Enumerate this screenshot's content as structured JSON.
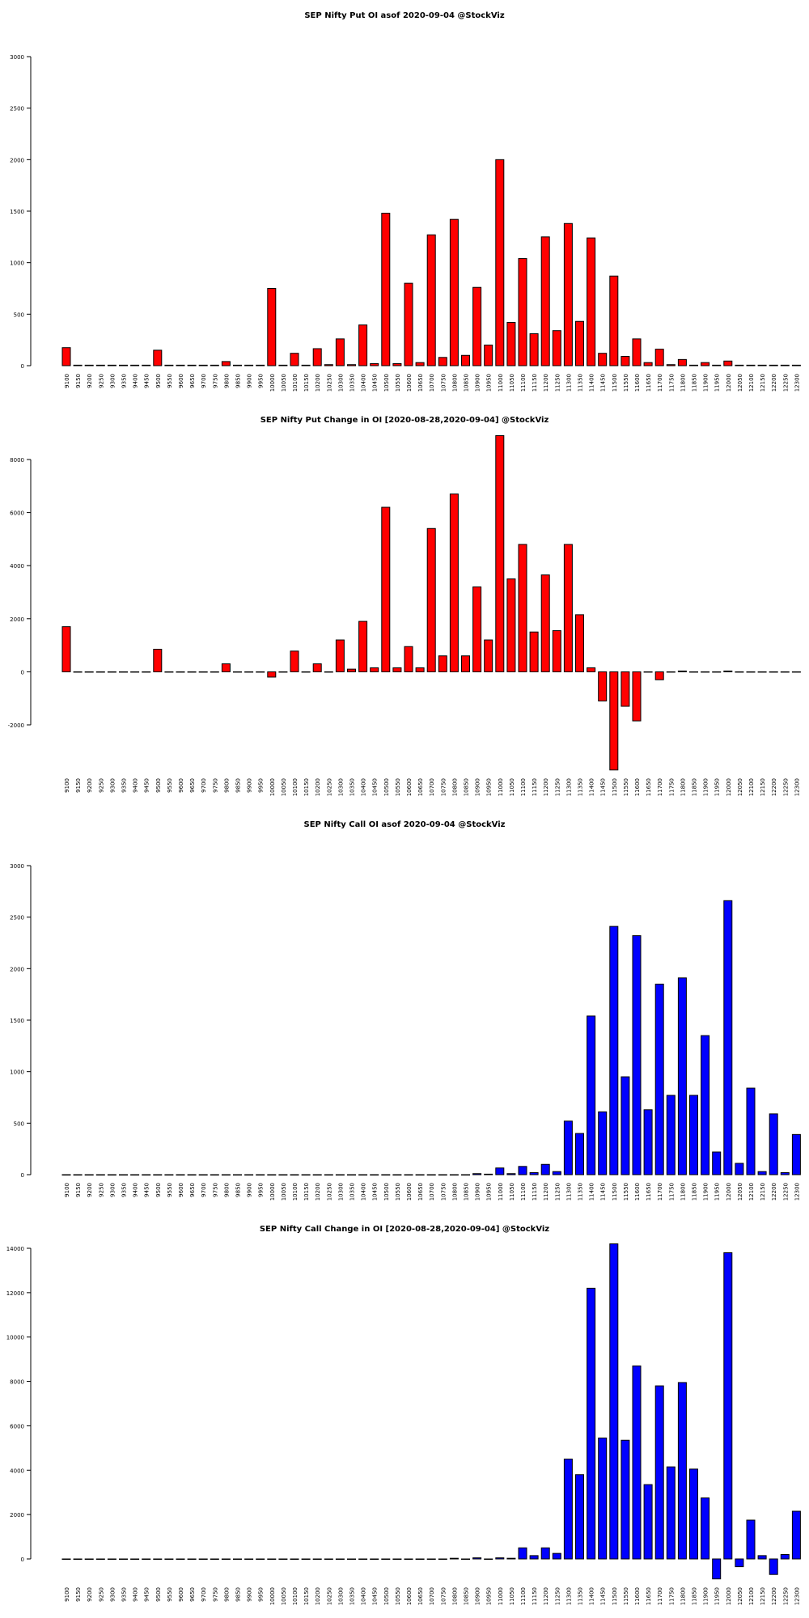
{
  "chart_data": [
    {
      "type": "bar",
      "title": "SEP Nifty Put OI asof 2020-09-04 @StockViz",
      "color": "#ff0000",
      "categories": [
        "9100",
        "9150",
        "9200",
        "9250",
        "9300",
        "9350",
        "9400",
        "9450",
        "9500",
        "9550",
        "9600",
        "9650",
        "9700",
        "9750",
        "9800",
        "9850",
        "9900",
        "9950",
        "10000",
        "10050",
        "10100",
        "10150",
        "10200",
        "10250",
        "10300",
        "10350",
        "10400",
        "10450",
        "10500",
        "10550",
        "10600",
        "10650",
        "10700",
        "10750",
        "10800",
        "10850",
        "10900",
        "10950",
        "11000",
        "11050",
        "11100",
        "11150",
        "11200",
        "11250",
        "11300",
        "11350",
        "11400",
        "11450",
        "11500",
        "11550",
        "11600",
        "11650",
        "11700",
        "11750",
        "11800",
        "11850",
        "11900",
        "11950",
        "12000",
        "12050",
        "12100",
        "12150",
        "12200",
        "12250",
        "12300"
      ],
      "values": [
        175,
        5,
        5,
        5,
        5,
        5,
        5,
        5,
        150,
        5,
        5,
        5,
        5,
        5,
        40,
        5,
        5,
        5,
        750,
        5,
        120,
        5,
        165,
        10,
        260,
        10,
        395,
        20,
        1480,
        20,
        800,
        30,
        1270,
        80,
        1420,
        100,
        760,
        200,
        2000,
        420,
        1040,
        310,
        1250,
        340,
        1380,
        430,
        1240,
        120,
        870,
        90,
        260,
        30,
        160,
        10,
        60,
        5,
        30,
        5,
        45,
        5,
        5,
        5,
        5,
        5,
        5
      ],
      "ylim": [
        0,
        3000
      ],
      "yticks": [
        0,
        500,
        1000,
        1500,
        2000,
        2500,
        3000
      ]
    },
    {
      "type": "bar",
      "title": "SEP Nifty Put Change in OI [2020-08-28,2020-09-04] @StockViz",
      "color": "#ff0000",
      "categories": [
        "9100",
        "9150",
        "9200",
        "9250",
        "9300",
        "9350",
        "9400",
        "9450",
        "9500",
        "9550",
        "9600",
        "9650",
        "9700",
        "9750",
        "9800",
        "9850",
        "9900",
        "9950",
        "10000",
        "10050",
        "10100",
        "10150",
        "10200",
        "10250",
        "10300",
        "10350",
        "10400",
        "10450",
        "10500",
        "10550",
        "10600",
        "10650",
        "10700",
        "10750",
        "10800",
        "10850",
        "10900",
        "10950",
        "11000",
        "11050",
        "11100",
        "11150",
        "11200",
        "11250",
        "11300",
        "11350",
        "11400",
        "11450",
        "11500",
        "11550",
        "11600",
        "11650",
        "11700",
        "11750",
        "11800",
        "11850",
        "11900",
        "11950",
        "12000",
        "12050",
        "12100",
        "12150",
        "12200",
        "12250",
        "12300"
      ],
      "values": [
        1700,
        0,
        0,
        0,
        0,
        0,
        0,
        0,
        850,
        0,
        0,
        0,
        0,
        0,
        300,
        0,
        0,
        0,
        -200,
        0,
        780,
        0,
        300,
        0,
        1200,
        100,
        1900,
        150,
        6200,
        150,
        950,
        150,
        5400,
        600,
        6700,
        600,
        3200,
        1200,
        8900,
        3500,
        4800,
        1500,
        3650,
        1550,
        4800,
        2150,
        150,
        -1100,
        -3700,
        -1300,
        -1850,
        0,
        -300,
        0,
        30,
        0,
        0,
        0,
        30,
        0,
        0,
        0,
        0,
        0,
        0
      ],
      "ylim": [
        -3700,
        8900
      ],
      "yticks": [
        -2000,
        0,
        2000,
        4000,
        6000,
        8000
      ]
    },
    {
      "type": "bar",
      "title": "SEP Nifty Call OI asof 2020-09-04 @StockViz",
      "color": "#0000ff",
      "categories": [
        "9100",
        "9150",
        "9200",
        "9250",
        "9300",
        "9350",
        "9400",
        "9450",
        "9500",
        "9550",
        "9600",
        "9650",
        "9700",
        "9750",
        "9800",
        "9850",
        "9900",
        "9950",
        "10000",
        "10050",
        "10100",
        "10150",
        "10200",
        "10250",
        "10300",
        "10350",
        "10400",
        "10450",
        "10500",
        "10550",
        "10600",
        "10650",
        "10700",
        "10750",
        "10800",
        "10850",
        "10900",
        "10950",
        "11000",
        "11050",
        "11100",
        "11150",
        "11200",
        "11250",
        "11300",
        "11350",
        "11400",
        "11450",
        "11500",
        "11550",
        "11600",
        "11650",
        "11700",
        "11750",
        "11800",
        "11850",
        "11900",
        "11950",
        "12000",
        "12050",
        "12100",
        "12150",
        "12200",
        "12250",
        "12300"
      ],
      "values": [
        0,
        0,
        0,
        0,
        0,
        0,
        0,
        0,
        0,
        0,
        0,
        0,
        0,
        0,
        0,
        0,
        0,
        0,
        0,
        0,
        0,
        0,
        0,
        0,
        0,
        0,
        0,
        0,
        0,
        0,
        0,
        0,
        0,
        0,
        0,
        0,
        10,
        5,
        65,
        10,
        80,
        20,
        100,
        30,
        520,
        400,
        1540,
        610,
        2410,
        950,
        2320,
        630,
        1850,
        770,
        1910,
        770,
        1350,
        220,
        2660,
        110,
        840,
        30,
        590,
        20,
        390
      ],
      "ylim": [
        0,
        3000
      ],
      "yticks": [
        0,
        500,
        1000,
        1500,
        2000,
        2500,
        3000
      ]
    },
    {
      "type": "bar",
      "title": "SEP Nifty Call Change in OI [2020-08-28,2020-09-04] @StockViz",
      "color": "#0000ff",
      "categories": [
        "9100",
        "9150",
        "9200",
        "9250",
        "9300",
        "9350",
        "9400",
        "9450",
        "9500",
        "9550",
        "9600",
        "9650",
        "9700",
        "9750",
        "9800",
        "9850",
        "9900",
        "9950",
        "10000",
        "10050",
        "10100",
        "10150",
        "10200",
        "10250",
        "10300",
        "10350",
        "10400",
        "10450",
        "10500",
        "10550",
        "10600",
        "10650",
        "10700",
        "10750",
        "10800",
        "10850",
        "10900",
        "10950",
        "11000",
        "11050",
        "11100",
        "11150",
        "11200",
        "11250",
        "11300",
        "11350",
        "11400",
        "11450",
        "11500",
        "11550",
        "11600",
        "11650",
        "11700",
        "11750",
        "11800",
        "11850",
        "11900",
        "11950",
        "12000",
        "12050",
        "12100",
        "12150",
        "12200",
        "12250",
        "12300"
      ],
      "values": [
        0,
        0,
        0,
        0,
        0,
        0,
        0,
        0,
        0,
        0,
        0,
        0,
        0,
        0,
        0,
        0,
        0,
        0,
        0,
        0,
        0,
        0,
        0,
        0,
        0,
        0,
        0,
        0,
        0,
        0,
        0,
        0,
        0,
        0,
        30,
        0,
        50,
        0,
        50,
        30,
        500,
        150,
        500,
        250,
        4500,
        3800,
        12200,
        5450,
        14200,
        5350,
        8700,
        3350,
        7800,
        4150,
        7950,
        4050,
        2750,
        -900,
        13800,
        -350,
        1750,
        150,
        -700,
        200,
        2150
      ],
      "ylim": [
        -1000,
        14200
      ],
      "yticks": [
        0,
        2000,
        4000,
        6000,
        8000,
        10000,
        12000,
        14000
      ]
    }
  ]
}
